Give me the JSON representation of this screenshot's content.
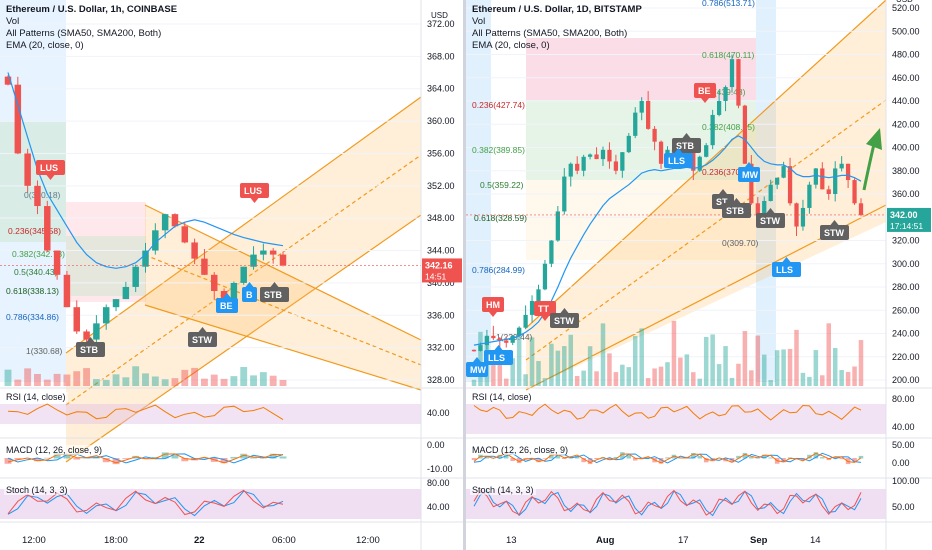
{
  "left": {
    "header": {
      "symbol": "Ethereum / U.S. Dollar, 1h, COINBASE",
      "vol": "Vol",
      "patterns": "All Patterns (SMA50, SMA200, Both)",
      "ema": "EMA (20, close, 0)"
    },
    "price_axis": [
      "372.00",
      "368.00",
      "364.00",
      "360.00",
      "356.00",
      "352.00",
      "348.00",
      "344.00",
      "340.00",
      "336.00",
      "332.00",
      "328.00"
    ],
    "price_axis_unit": "USD",
    "current_price": "342.16",
    "countdown": "14:51",
    "time_axis": [
      "12:00",
      "18:00",
      "22",
      "06:00",
      "12:00"
    ],
    "fib_levels": [
      {
        "label": "0(350.18)"
      },
      {
        "label": "0.236(345.58)"
      },
      {
        "label": "0.382(342.73)"
      },
      {
        "label": "0.5(340.43)"
      },
      {
        "label": "0.618(338.13)"
      },
      {
        "label": "0.786(334.86)"
      },
      {
        "label": "1(330.68)"
      }
    ],
    "pattern_tags": [
      {
        "label": "LUS",
        "color": "#ef5350"
      },
      {
        "label": "LUS",
        "color": "#ef5350"
      },
      {
        "label": "STB",
        "color": "#616161"
      },
      {
        "label": "STW",
        "color": "#616161"
      },
      {
        "label": "BE",
        "color": "#2196f3"
      },
      {
        "label": "B",
        "color": "#2196f3"
      },
      {
        "label": "STB",
        "color": "#616161"
      }
    ],
    "rsi": {
      "label": "RSI (14, close)",
      "axis": [
        "40.00"
      ]
    },
    "macd": {
      "label": "MACD (12, 26, close, 9)",
      "axis": [
        "0.00",
        "-10.00"
      ]
    },
    "stoch": {
      "label": "Stoch (14, 3, 3)",
      "axis": [
        "80.00",
        "40.00"
      ]
    }
  },
  "right": {
    "header": {
      "symbol": "Ethereum / U.S. Dollar, 1D, BITSTAMP",
      "vol": "Vol",
      "patterns": "All Patterns (SMA50, SMA200, Both)",
      "ema": "EMA (20, close, 0)"
    },
    "price_axis": [
      "520.00",
      "500.00",
      "480.00",
      "460.00",
      "440.00",
      "420.00",
      "400.00",
      "380.00",
      "360.00",
      "340.00",
      "320.00",
      "300.00",
      "280.00",
      "260.00",
      "240.00",
      "220.00",
      "200.00"
    ],
    "price_axis_unit": "USD",
    "current_price": "342.00",
    "countdown": "17:14:51",
    "time_axis": [
      "13",
      "Aug",
      "17",
      "Sep",
      "14"
    ],
    "fib_levels": [
      {
        "label": "0.786(513.71)"
      },
      {
        "label": "0.618(470.11)"
      },
      {
        "label": "0.5(439.48)"
      },
      {
        "label": "0.382(408.85)"
      },
      {
        "label": "0.236(427.74)"
      },
      {
        "label": "0.382(389.85)"
      },
      {
        "label": "0.236(370.93)"
      },
      {
        "label": "0.5(359.22)"
      },
      {
        "label": "0.618(328.59)"
      },
      {
        "label": "0(309.70)"
      },
      {
        "label": "0.786(284.99)"
      },
      {
        "label": "1(229.44)"
      }
    ],
    "pattern_tags": [
      {
        "label": "BE",
        "color": "#ef5350"
      },
      {
        "label": "STB",
        "color": "#616161"
      },
      {
        "label": "LLS",
        "color": "#2196f3"
      },
      {
        "label": "MW",
        "color": "#2196f3"
      },
      {
        "label": "ST",
        "color": "#616161"
      },
      {
        "label": "STB",
        "color": "#616161"
      },
      {
        "label": "STW",
        "color": "#616161"
      },
      {
        "label": "STW",
        "color": "#616161"
      },
      {
        "label": "LLS",
        "color": "#2196f3"
      },
      {
        "label": "HM",
        "color": "#ef5350"
      },
      {
        "label": "TT",
        "color": "#ef5350"
      },
      {
        "label": "STW",
        "color": "#616161"
      },
      {
        "label": "MW",
        "color": "#2196f3"
      },
      {
        "label": "LLS",
        "color": "#2196f3"
      }
    ],
    "rsi": {
      "label": "RSI (14, close)",
      "axis": [
        "80.00",
        "40.00"
      ]
    },
    "macd": {
      "label": "MACD (12, 26, close, 9)",
      "axis": [
        "50.00",
        "0.00"
      ]
    },
    "stoch": {
      "label": "Stoch (14, 3, 3)",
      "axis": [
        "100.00",
        "50.00"
      ]
    }
  },
  "chart_data": [
    {
      "type": "candlestick",
      "title": "Ethereum / U.S. Dollar, 1h, COINBASE",
      "ylabel": "USD",
      "ylim": [
        328,
        372
      ],
      "x": [
        "12:00",
        "18:00",
        "22",
        "06:00"
      ],
      "close_series": [
        364.5,
        356,
        352,
        349.5,
        344,
        341,
        337,
        334,
        333,
        335,
        337,
        338,
        339.5,
        342,
        344,
        346.5,
        348.5,
        347,
        345,
        343,
        341,
        339,
        338,
        340,
        342,
        343.5,
        344,
        343.5,
        342.16
      ],
      "ema20": [
        366,
        362,
        358,
        354,
        351,
        349,
        347,
        345,
        343.5,
        342.5,
        342,
        341.8,
        342,
        342.5,
        343.5,
        345,
        346,
        347,
        347.5,
        347.8,
        347.5,
        347,
        346.5,
        346,
        345.6,
        345.3,
        345,
        344.8,
        344.6
      ],
      "last_price": 342.16
    },
    {
      "type": "candlestick",
      "title": "Ethereum / U.S. Dollar, 1D, BITSTAMP",
      "ylabel": "USD",
      "ylim": [
        200,
        520
      ],
      "x": [
        "13",
        "Aug",
        "17",
        "Sep",
        "14"
      ],
      "close_series": [
        225,
        230,
        238,
        236,
        234,
        232,
        238,
        245,
        256,
        268,
        278,
        300,
        320,
        345,
        375,
        386,
        380,
        392,
        394,
        390,
        398,
        388,
        380,
        396,
        410,
        430,
        440,
        416,
        405,
        386,
        398,
        392,
        388,
        396,
        380,
        392,
        402,
        428,
        440,
        452,
        476,
        436,
        386,
        352,
        342,
        354,
        368,
        374,
        384,
        352,
        332,
        348,
        368,
        382,
        364,
        360,
        382,
        386,
        372,
        352,
        342
      ],
      "ema20": [
        230,
        231,
        232,
        233,
        234,
        235,
        236,
        238,
        241,
        245,
        250,
        258,
        268,
        280,
        293,
        305,
        315,
        325,
        334,
        342,
        350,
        356,
        360,
        364,
        368,
        373,
        378,
        380,
        381,
        380,
        381,
        382,
        382,
        383,
        382,
        383,
        385,
        389,
        394,
        400,
        407,
        410,
        407,
        400,
        393,
        388,
        386,
        385,
        385,
        382,
        377,
        375,
        375,
        376,
        375,
        374,
        375,
        376,
        376,
        374,
        371
      ],
      "last_price": 342.0
    }
  ]
}
